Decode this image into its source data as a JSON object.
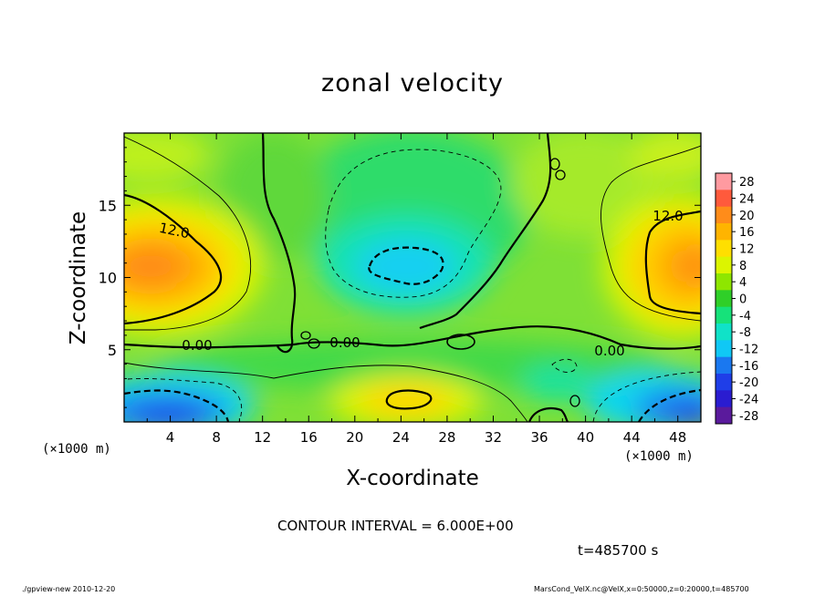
{
  "chart_data": {
    "type": "heatmap",
    "title": "zonal velocity",
    "xlabel": "X-coordinate",
    "ylabel": "Z-coordinate",
    "x_unit_label": "(×1000 m)",
    "xlim": [
      0,
      50
    ],
    "ylim": [
      0,
      20
    ],
    "x_ticks": [
      4,
      8,
      12,
      16,
      20,
      24,
      28,
      32,
      36,
      40,
      44,
      48
    ],
    "y_ticks": [
      5,
      10,
      15
    ],
    "contour_interval_text": "CONTOUR INTERVAL = 6.000E+00",
    "contour_labels": [
      "12.0",
      "0.00",
      "0.00",
      "0.00",
      "12.0"
    ],
    "time_text": "t=485700 s",
    "colorbar": {
      "levels": [
        28,
        24,
        20,
        16,
        12,
        8,
        4,
        0,
        -4,
        -8,
        -12,
        -16,
        -20,
        -24,
        -28
      ],
      "colors": [
        "#ff9aa0",
        "#ff5a3c",
        "#ff8c1a",
        "#ffb400",
        "#ffdf00",
        "#dcf500",
        "#8ee600",
        "#2fcf28",
        "#16e27a",
        "#10e2c8",
        "#10c8f5",
        "#1a78f0",
        "#1f3ee8",
        "#2a1cd0",
        "#5a1a9c"
      ]
    }
  },
  "footer": {
    "left": "./gpview-new   2010-12-20",
    "right": "MarsCond_VelX.nc@VelX,x=0:50000,z=0:20000,t=485700"
  }
}
